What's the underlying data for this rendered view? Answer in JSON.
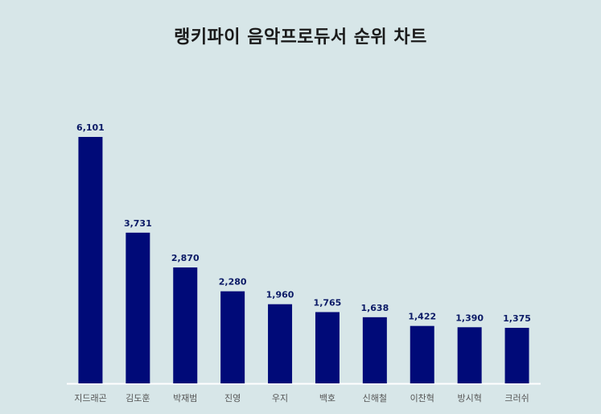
{
  "colors": {
    "background": "#d7e6e8",
    "bar": "#000a78",
    "value_label": "#0b1a66",
    "category_label": "#555555",
    "baseline": "#ffffff"
  },
  "chart_data": {
    "type": "bar",
    "title": "랭키파이 음악프로듀서 순위 차트",
    "categories": [
      "지드래곤",
      "김도훈",
      "박재범",
      "진영",
      "우지",
      "백호",
      "신해철",
      "이찬혁",
      "방시혁",
      "크러쉬"
    ],
    "values": [
      6101,
      3731,
      2870,
      2280,
      1960,
      1765,
      1638,
      1422,
      1390,
      1375
    ],
    "value_labels": [
      "6,101",
      "3,731",
      "2,870",
      "2,280",
      "1,960",
      "1,765",
      "1,638",
      "1,422",
      "1,390",
      "1,375"
    ],
    "xlabel": "",
    "ylabel": "",
    "ylim": [
      0,
      6101
    ],
    "grid": false,
    "legend": "none"
  }
}
